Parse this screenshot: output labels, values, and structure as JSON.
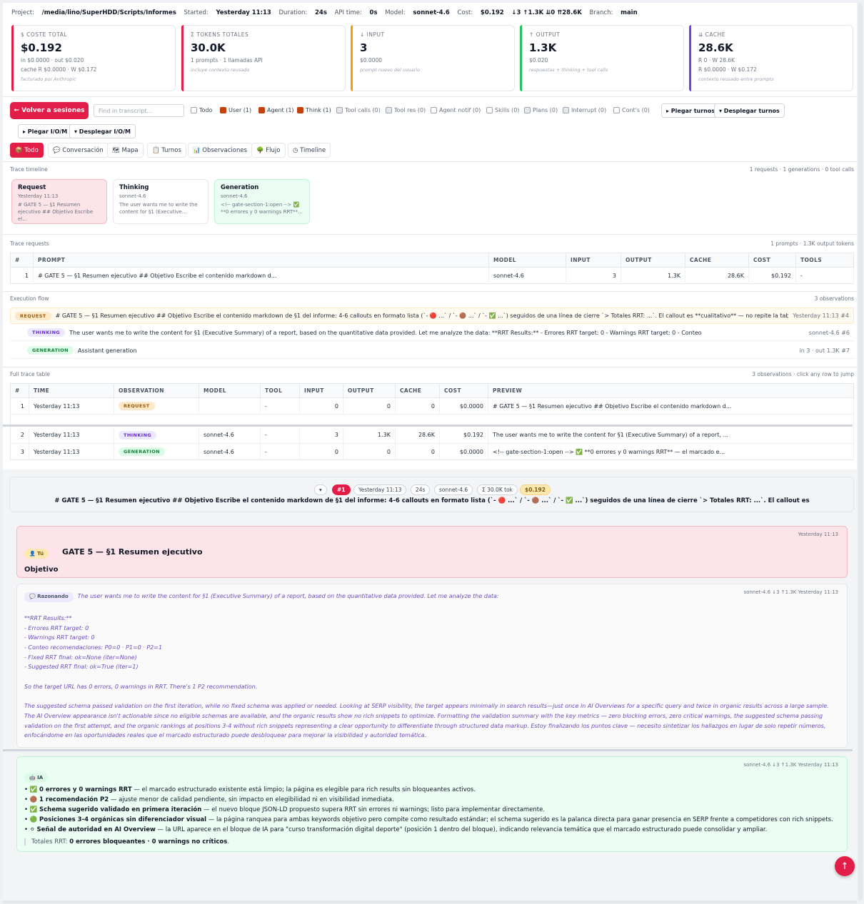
{
  "meta": {
    "project_label": "Project:",
    "project": "/media/lino/SuperHDD/Scripts/Informes",
    "started_label": "Started:",
    "started": "Yesterday 11:13",
    "duration_label": "Duration:",
    "duration": "24s",
    "api_label": "API time:",
    "api": "0s",
    "model_label": "Model:",
    "model": "sonnet-4.6",
    "cost_label": "Cost:",
    "cost": "$0.192",
    "tokens": "↓3 ↑1.3K ⇊0 ⇈28.6K",
    "branch_label": "Branch:",
    "branch": "main"
  },
  "cards": [
    {
      "label": "$ COSTE TOTAL",
      "value": "$0.192",
      "sub1": "in $0.0000 · out $0.020",
      "sub2": "cache R $0.0000 · W $0.172",
      "note": "facturado por Anthropic",
      "accent": "#e11d48"
    },
    {
      "label": "Σ TOKENS TOTALES",
      "value": "30.0K",
      "sub1": "1 prompts · 1 llamadas API",
      "sub2": "",
      "note": "incluye contexto reusado",
      "accent": "#e11d48"
    },
    {
      "label": "↓ INPUT",
      "value": "3",
      "sub1": "$0.0000",
      "sub2": "",
      "note": "prompt nuevo del usuario",
      "accent": "#f59e0b"
    },
    {
      "label": "↑ OUTPUT",
      "value": "1.3K",
      "sub1": "$0.020",
      "sub2": "",
      "note": "respuestas + thinking + tool calls",
      "accent": "#22c55e"
    },
    {
      "label": "⇊ CACHE",
      "value": "28.6K",
      "sub1": "R 0 · W 28.6K",
      "sub2": "R $0.0000 · W $0.172",
      "note": "contexto reusado entre prompts",
      "accent": "#7c3aed"
    }
  ],
  "toolbar": {
    "back": "← Volver a sesiones",
    "search_placeholder": "Find in transcript...",
    "filters": [
      {
        "label": "Todo",
        "state": "off"
      },
      {
        "label": "User (1)",
        "state": "on"
      },
      {
        "label": "Agent (1)",
        "state": "on"
      },
      {
        "label": "Think (1)",
        "state": "on"
      },
      {
        "label": "Tool calls (0)",
        "state": "dis"
      },
      {
        "label": "Tool res (0)",
        "state": "dis"
      },
      {
        "label": "Agent notif (0)",
        "state": "off"
      },
      {
        "label": "Skills (0)",
        "state": "off"
      },
      {
        "label": "Plans (0)",
        "state": "dis"
      },
      {
        "label": "Interrupt (0)",
        "state": "dis"
      },
      {
        "label": "Cont's (0)",
        "state": "off"
      }
    ],
    "fold_turns": "▸ Plegar turnos",
    "unfold_turns": "▾ Desplegar turnos",
    "fold_io": "▸ Plegar I/O/M",
    "unfold_io": "▾ Desplegar I/O/M"
  },
  "tabs": [
    "📦 Todo",
    "💬 Conversación",
    "🗺 Mapa",
    "📋 Turnos",
    "📊 Observaciones",
    "🌳 Flujo",
    "◷ Timeline"
  ],
  "timeline": {
    "title": "Trace timeline",
    "summary": "1 requests · 1 generations · 0 tool calls",
    "items": [
      {
        "title": "Request",
        "sub": "Yesterday 11:13",
        "preview": "# GATE 5 — §1 Resumen ejecutivo ## Objetivo Escribe el...",
        "bg": "#fde4e8",
        "border": "#f9b8c4"
      },
      {
        "title": "Thinking",
        "sub": "sonnet-4.6",
        "preview": "The user wants me to write the content for §1 (Executive...",
        "bg": "#ffffff",
        "border": "#e5e7eb"
      },
      {
        "title": "Generation",
        "sub": "sonnet-4.6",
        "preview": "<!-- gate-section-1:open --> ✅ **0 errores y 0 warnings RRT**...",
        "bg": "#ecfdf3",
        "border": "#bbf7d0"
      }
    ]
  },
  "requests": {
    "title": "Trace requests",
    "summary": "1 prompts · 1.3K output tokens",
    "headers": [
      "#",
      "PROMPT",
      "MODEL",
      "INPUT",
      "OUTPUT",
      "CACHE",
      "COST",
      "TOOLS"
    ],
    "rows": [
      [
        "1",
        "# GATE 5 — §1 Resumen ejecutivo ## Objetivo Escribe el contenido markdown d...",
        "sonnet-4.6",
        "3",
        "1.3K",
        "28.6K",
        "$0.192",
        "-"
      ]
    ]
  },
  "flow": {
    "title": "Execution flow",
    "summary": "3 observations",
    "rows": [
      {
        "type": "REQUEST",
        "text": "# GATE 5 — §1 Resumen ejecutivo ## Objetivo Escribe el contenido markdown de §1 del informe: 4-6 callouts en formato lista (`- 🔴 ...` / `- 🟤 ...` / `- ✅ ...`) seguidos de una línea de cierre `> Totales RRT: ...`. El callout es **cualitativo** — no repite la tabla §0",
        "right": "Yesterday 11:13  #4"
      },
      {
        "type": "THINKING",
        "text": "The user wants me to write the content for §1 (Executive Summary) of a report, based on the quantitative data provided. Let me analyze the data: **RRT Results:** - Errores RRT target: 0 - Warnings RRT target: 0 - Conteo",
        "right": "sonnet-4.6  #6"
      },
      {
        "type": "GENERATION",
        "text": "Assistant generation",
        "right": "in 3 · out 1.3K  #7"
      }
    ]
  },
  "full": {
    "title": "Full trace table",
    "summary": "3 observations · click any row to jump",
    "headers": [
      "#",
      "TIME",
      "OBSERVATION",
      "MODEL",
      "TOOL",
      "INPUT",
      "OUTPUT",
      "CACHE",
      "COST",
      "PREVIEW"
    ],
    "rows": [
      [
        "1",
        "Yesterday 11:13",
        "REQUEST",
        "",
        "-",
        "0",
        "0",
        "0",
        "$0.0000",
        "# GATE 5 — §1 Resumen ejecutivo ## Objetivo Escribe el contenido markdown d..."
      ],
      [
        "2",
        "Yesterday 11:13",
        "THINKING",
        "sonnet-4.6",
        "-",
        "3",
        "1.3K",
        "28.6K",
        "$0.192",
        "The user wants me to write the content for §1 (Executive Summary) of a report, ..."
      ],
      [
        "3",
        "Yesterday 11:13",
        "GENERATION",
        "sonnet-4.6",
        "-",
        "0",
        "0",
        "0",
        "$0.0000",
        "<!-- gate-section-1:open --> ✅ **0 errores y 0 warnings RRT** — el marcado e..."
      ]
    ]
  },
  "turn": {
    "chips": [
      "▾",
      "#1",
      "Yesterday 11:13",
      "24s",
      "sonnet-4.6",
      "Σ 30.0K tok",
      "$0.192"
    ],
    "heading": "# GATE 5 — §1 Resumen ejecutivo ## Objetivo Escribe el contenido markdown de §1 del informe: 4-6 callouts en formato lista (`- 🔴 ...` / `- 🟤 ...` / `- ✅ ...`) seguidos de una línea de cierre `> Totales RRT: ...`. El callout es"
  },
  "user_msg": {
    "role": "👤 Tú",
    "time": "Yesterday 11:13",
    "title": "GATE 5 — §1 Resumen ejecutivo",
    "next": "Objetivo"
  },
  "think_msg": {
    "role": "💬 Razonando",
    "meta": "sonnet-4.6   ↓3 ↑1.3K   Yesterday 11:13",
    "first": "The user wants me to write the content for §1 (Executive Summary) of a report, based on the quantitative data provided. Let me analyze the data:",
    "block": [
      "**RRT Results:**",
      "- Errores RRT target: 0",
      "- Warnings RRT target: 0",
      "- Conteo recomendaciones: P0=0 · P1=0 · P2=1",
      "- Fixed RRT final: ok=None (iter=None)",
      "- Suggested RRT final: ok=True (iter=1)"
    ],
    "p2": "So the target URL has 0 errors, 0 warnings in RRT. There's 1 P2 recommendation.",
    "p3": "The suggested schema passed validation on the first iteration, while no fixed schema was applied or needed. Looking at SERP visibility, the target appears minimally in search results—just once in AI Overviews for a specific query and twice in organic results across a large sample. The AI Overview appearance isn't actionable since no eligible schemas are available, and the organic results show no rich snippets to optimize. Formatting the validation summary with the key metrics — zero blocking errors, zero critical warnings, the suggested schema passing validation on the first attempt, and the organic rankings at positions 3-4 without rich snippets representing a clear opportunity to differentiate through structured data markup. Estoy finalizando los puntos clave — necesito sintetizar los hallazgos en lugar de solo repetir números, enfocándome en las oportunidades reales que el marcado estructurado puede desbloquear para mejorar la visibilidad y autoridad temática."
  },
  "ai_msg": {
    "role": "🤖 IA",
    "meta": "sonnet-4.6   ↓3 ↑1.3K   Yesterday 11:13",
    "items": [
      {
        "icon": "✅",
        "bold": "0 errores y 0 warnings RRT",
        "rest": " — el marcado estructurado existente está limpio; la página es elegible para rich results sin bloqueantes activos."
      },
      {
        "icon": "🟤",
        "bold": "1 recomendación P2",
        "rest": " — ajuste menor de calidad pendiente, sin impacto en elegibilidad ni en visibilidad inmediata."
      },
      {
        "icon": "✅",
        "bold": "Schema sugerido validado en primera iteración",
        "rest": " — el nuevo bloque JSON-LD propuesto supera RRT sin errores ni warnings; listo para implementar directamente."
      },
      {
        "icon": "🟢",
        "bold": "Posiciones 3-4 orgánicas sin diferenciador visual",
        "rest": " — la página ranquea para ambas keywords objetivo pero compite como resultado estándar; el schema sugerido es la palanca directa para ganar presencia en SERP frente a competidores con rich snippets."
      },
      {
        "icon": "⚪",
        "bold": "Señal de autoridad en AI Overview",
        "rest": " — la URL aparece en el bloque de IA para \"curso transformación digital deporte\" (posición 1 dentro del bloque), indicando relevancia temática que el marcado estructurado puede consolidar y ampliar."
      }
    ],
    "totals_prefix": "Totales RRT: ",
    "totals_bold": "0 errores bloqueantes · 0 warnings no críticos",
    "totals_suffix": "."
  },
  "fab": "↑"
}
